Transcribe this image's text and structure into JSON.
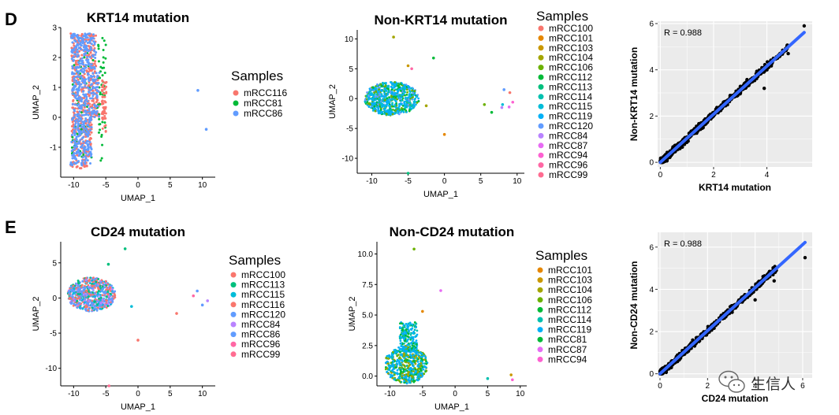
{
  "panel_labels": [
    "D",
    "E"
  ],
  "watermark": {
    "text": "生信人",
    "icon": "wechat-icon"
  },
  "colors": {
    "mRCC116": "#F8766D",
    "mRCC81": "#00BA38",
    "mRCC86": "#619CFF",
    "mRCC100": "#F8766D",
    "mRCC101": "#E58700",
    "mRCC103": "#C99800",
    "mRCC104": "#A3A500",
    "mRCC106": "#6BB100",
    "mRCC112": "#00BA38",
    "mRCC113": "#00BF7D",
    "mRCC114": "#00C0AF",
    "mRCC115": "#00BCD8",
    "mRCC119": "#00B0F6",
    "mRCC120": "#619CFF",
    "mRCC84": "#B983FF",
    "mRCC87": "#E76BF3",
    "mRCC94": "#FD61D1",
    "mRCC96": "#FF67A4",
    "mRCC99": "#FF6C91",
    "scatter_points": "#000000",
    "fit_line": "#3366FF",
    "grid_bg": "#EBEBEB"
  },
  "chart_data": [
    {
      "id": "krt14",
      "type": "scatter",
      "title": "KRT14 mutation",
      "xlabel": "UMAP_1",
      "ylabel": "UMAP_2",
      "xlim": [
        -12,
        12
      ],
      "ylim": [
        -2,
        3
      ],
      "xticks": [
        -10,
        -5,
        0,
        5,
        10
      ],
      "yticks": [
        -1,
        0,
        1,
        2,
        3
      ],
      "legend_title": "Samples",
      "series": [
        {
          "name": "mRCC116",
          "cluster": {
            "x": [
              -10.4,
              -7.6
            ],
            "y": [
              -1.7,
              2.8
            ]
          },
          "outliers": []
        },
        {
          "name": "mRCC81",
          "cluster": {
            "x": [
              -10.3,
              -5.2
            ],
            "y": [
              -1.5,
              2.8
            ]
          },
          "outliers": []
        },
        {
          "name": "mRCC86",
          "cluster": {
            "x": [
              -10.8,
              -5.5
            ],
            "y": [
              -1.6,
              2.8
            ]
          },
          "outliers": [
            [
              9.3,
              0.9
            ],
            [
              10.6,
              -0.4
            ]
          ]
        }
      ]
    },
    {
      "id": "non-krt14",
      "type": "scatter",
      "title": "Non-KRT14 mutation",
      "xlabel": "UMAP_1",
      "ylabel": "UMAP_2",
      "xlim": [
        -12,
        11
      ],
      "ylim": [
        -12.5,
        11.5
      ],
      "xticks": [
        -10,
        -5,
        0,
        5,
        10
      ],
      "yticks": [
        -10,
        -5,
        0,
        5,
        10
      ],
      "legend_title": "Samples",
      "series": [
        {
          "name": "mRCC100",
          "outliers": [
            [
              9.0,
              1.0
            ]
          ]
        },
        {
          "name": "mRCC101",
          "outliers": [
            [
              0.0,
              -6.0
            ]
          ]
        },
        {
          "name": "mRCC103",
          "outliers": [
            [
              -5.0,
              5.5
            ]
          ]
        },
        {
          "name": "mRCC104",
          "outliers": [
            [
              -7.0,
              10.3
            ],
            [
              -2.5,
              -1.2
            ]
          ]
        },
        {
          "name": "mRCC106",
          "outliers": [
            [
              5.5,
              -1.0
            ]
          ]
        },
        {
          "name": "mRCC112",
          "outliers": [
            [
              -1.5,
              6.8
            ],
            [
              6.5,
              -2.3
            ]
          ]
        },
        {
          "name": "mRCC113",
          "outliers": [
            [
              -5.0,
              -12.5
            ]
          ]
        },
        {
          "name": "mRCC114",
          "outliers": [
            [
              -4.5,
              -1.2
            ]
          ]
        },
        {
          "name": "mRCC115",
          "outliers": [
            [
              8.0,
              -1.0
            ]
          ]
        },
        {
          "name": "mRCC119",
          "outliers": []
        },
        {
          "name": "mRCC120",
          "outliers": [
            [
              8.2,
              1.5
            ]
          ]
        },
        {
          "name": "mRCC84",
          "outliers": [
            [
              7.9,
              -1.5
            ]
          ]
        },
        {
          "name": "mRCC87",
          "outliers": [
            [
              8.9,
              -1.4
            ]
          ]
        },
        {
          "name": "mRCC94",
          "outliers": [
            [
              9.4,
              -0.6
            ]
          ]
        },
        {
          "name": "mRCC96",
          "outliers": [
            [
              -4.5,
              5.0
            ]
          ]
        },
        {
          "name": "mRCC99",
          "outliers": []
        }
      ],
      "main_cluster": {
        "x": [
          -11.0,
          -3.5
        ],
        "y": [
          -2.8,
          2.8
        ]
      }
    },
    {
      "id": "krt14-corr",
      "type": "scatter",
      "title": "",
      "xlabel": "KRT14 mutation",
      "ylabel": "Non-KRT14 mutation",
      "xlim": [
        -0.1,
        5.7
      ],
      "ylim": [
        -0.2,
        6.1
      ],
      "xticks": [
        0,
        2,
        4
      ],
      "yticks": [
        0,
        2,
        4,
        6
      ],
      "annotation": "R = 0.988",
      "fit": {
        "slope": 1.04,
        "intercept": 0.0,
        "x_range": [
          0,
          5.4
        ]
      },
      "extreme_points": [
        [
          5.4,
          5.9
        ],
        [
          4.8,
          4.7
        ],
        [
          3.9,
          3.2
        ]
      ]
    },
    {
      "id": "cd24",
      "type": "scatter",
      "title": "CD24 mutation",
      "xlabel": "UMAP_1",
      "ylabel": "UMAP_2",
      "xlim": [
        -12,
        12
      ],
      "ylim": [
        -12.5,
        8
      ],
      "xticks": [
        -10,
        -5,
        0,
        5,
        10
      ],
      "yticks": [
        -10,
        -5,
        0,
        5
      ],
      "legend_title": "Samples",
      "series": [
        {
          "name": "mRCC100",
          "outliers": [
            [
              0.0,
              -6.0
            ]
          ]
        },
        {
          "name": "mRCC113",
          "outliers": [
            [
              -2.0,
              7.0
            ],
            [
              -4.6,
              4.8
            ]
          ]
        },
        {
          "name": "mRCC115",
          "outliers": [
            [
              -1.0,
              -1.2
            ]
          ]
        },
        {
          "name": "mRCC116",
          "outliers": [
            [
              6.0,
              -2.2
            ]
          ]
        },
        {
          "name": "mRCC120",
          "outliers": [
            [
              10.0,
              -1.0
            ]
          ]
        },
        {
          "name": "mRCC84",
          "outliers": [
            [
              10.8,
              -0.4
            ]
          ]
        },
        {
          "name": "mRCC86",
          "outliers": [
            [
              9.2,
              1.0
            ]
          ]
        },
        {
          "name": "mRCC96",
          "outliers": [
            [
              8.6,
              0.3
            ]
          ]
        },
        {
          "name": "mRCC99",
          "outliers": [
            [
              -4.5,
              -12.5
            ]
          ]
        }
      ],
      "main_cluster": {
        "x": [
          -11.0,
          -3.5
        ],
        "y": [
          -1.9,
          2.9
        ]
      }
    },
    {
      "id": "non-cd24",
      "type": "scatter",
      "title": "Non-CD24 mutation",
      "xlabel": "UMAP_1",
      "ylabel": "UMAP_2",
      "xlim": [
        -12,
        11
      ],
      "ylim": [
        -0.8,
        11
      ],
      "xticks": [
        -10,
        -5,
        0,
        5,
        10
      ],
      "yticks": [
        0.0,
        2.5,
        5.0,
        7.5,
        10.0
      ],
      "legend_title": "Samples",
      "series": [
        {
          "name": "mRCC101",
          "outliers": [
            [
              -5.0,
              5.3
            ]
          ]
        },
        {
          "name": "mRCC103",
          "outliers": [
            [
              8.6,
              0.1
            ]
          ]
        },
        {
          "name": "mRCC104",
          "outliers": []
        },
        {
          "name": "mRCC106",
          "outliers": [
            [
              -6.3,
              10.4
            ]
          ]
        },
        {
          "name": "mRCC112",
          "outliers": []
        },
        {
          "name": "mRCC114",
          "outliers": [
            [
              5.0,
              -0.2
            ]
          ]
        },
        {
          "name": "mRCC119",
          "outliers": []
        },
        {
          "name": "mRCC81",
          "outliers": []
        },
        {
          "name": "mRCC87",
          "outliers": [
            [
              -2.2,
              7.0
            ]
          ]
        },
        {
          "name": "mRCC94",
          "outliers": [
            [
              8.8,
              -0.3
            ]
          ]
        }
      ],
      "main_cluster": {
        "x": [
          -11.0,
          -4.0
        ],
        "y": [
          -0.7,
          4.5
        ]
      }
    },
    {
      "id": "cd24-corr",
      "type": "scatter",
      "title": "",
      "xlabel": "CD24 mutation",
      "ylabel": "Non-CD24 mutation",
      "xlim": [
        -0.1,
        6.4
      ],
      "ylim": [
        -0.2,
        6.7
      ],
      "xticks": [
        0,
        2,
        4,
        6
      ],
      "yticks": [
        0,
        2,
        4,
        6
      ],
      "annotation": "R = 0.988",
      "fit": {
        "slope": 1.02,
        "intercept": 0.0,
        "x_range": [
          0,
          6.1
        ]
      },
      "extreme_points": [
        [
          6.1,
          5.5
        ],
        [
          4.8,
          4.4
        ],
        [
          4.0,
          3.5
        ]
      ]
    }
  ]
}
